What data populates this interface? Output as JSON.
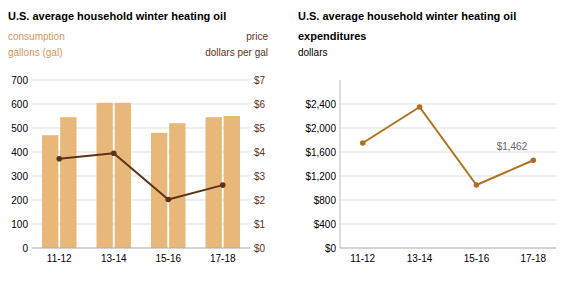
{
  "chart_data": [
    {
      "type": "bar",
      "title": "U.S. average household winter heating oil",
      "ylabel": [
        "consumption",
        "gallons (gal)"
      ],
      "y2label": [
        "price",
        "dollars per gal"
      ],
      "categories": [
        "11-12",
        "13-14",
        "15-16",
        "17-18"
      ],
      "series": [
        {
          "type": "bar",
          "color": "#E8B87A",
          "values": [
            470,
            605,
            480,
            545
          ]
        },
        {
          "type": "bar",
          "color": "#E8B87A",
          "values": [
            545,
            605,
            520,
            550
          ]
        },
        {
          "type": "line",
          "axis": "y2",
          "color": "#5C3318",
          "marker": "circle",
          "values": [
            3.72,
            3.95,
            2.02,
            2.62
          ]
        }
      ],
      "ylim": [
        0,
        700
      ],
      "yticks": [
        0,
        100,
        200,
        300,
        400,
        500,
        600,
        700
      ],
      "y2lim": [
        0,
        7
      ],
      "y2ticks": [
        {
          "value": 0,
          "label": "$0"
        },
        {
          "value": 1,
          "label": "$1"
        },
        {
          "value": 2,
          "label": "$2"
        },
        {
          "value": 3,
          "label": "$3"
        },
        {
          "value": 4,
          "label": "$4"
        },
        {
          "value": 5,
          "label": "$5"
        },
        {
          "value": 6,
          "label": "$6"
        },
        {
          "value": 7,
          "label": "$7"
        }
      ],
      "grid": true
    },
    {
      "type": "line",
      "title": [
        "U.S. average household winter heating oil",
        "expenditures"
      ],
      "ylabel": "dollars",
      "categories": [
        "11-12",
        "13-14",
        "15-16",
        "17-18"
      ],
      "series": [
        {
          "color": "#B07020",
          "marker": "circle",
          "values": [
            1750,
            2350,
            1050,
            1462
          ]
        }
      ],
      "ylim": [
        0,
        2800
      ],
      "yticks": [
        {
          "value": 0,
          "label": "$0"
        },
        {
          "value": 400,
          "label": "$400"
        },
        {
          "value": 800,
          "label": "$800"
        },
        {
          "value": 1200,
          "label": "$1,200"
        },
        {
          "value": 1600,
          "label": "$1,600"
        },
        {
          "value": 2000,
          "label": "$2,000"
        },
        {
          "value": 2400,
          "label": "$2,400"
        }
      ],
      "grid": true,
      "annotations": [
        {
          "text": "$1,462",
          "x": "17-18",
          "y": 1462
        }
      ]
    }
  ]
}
